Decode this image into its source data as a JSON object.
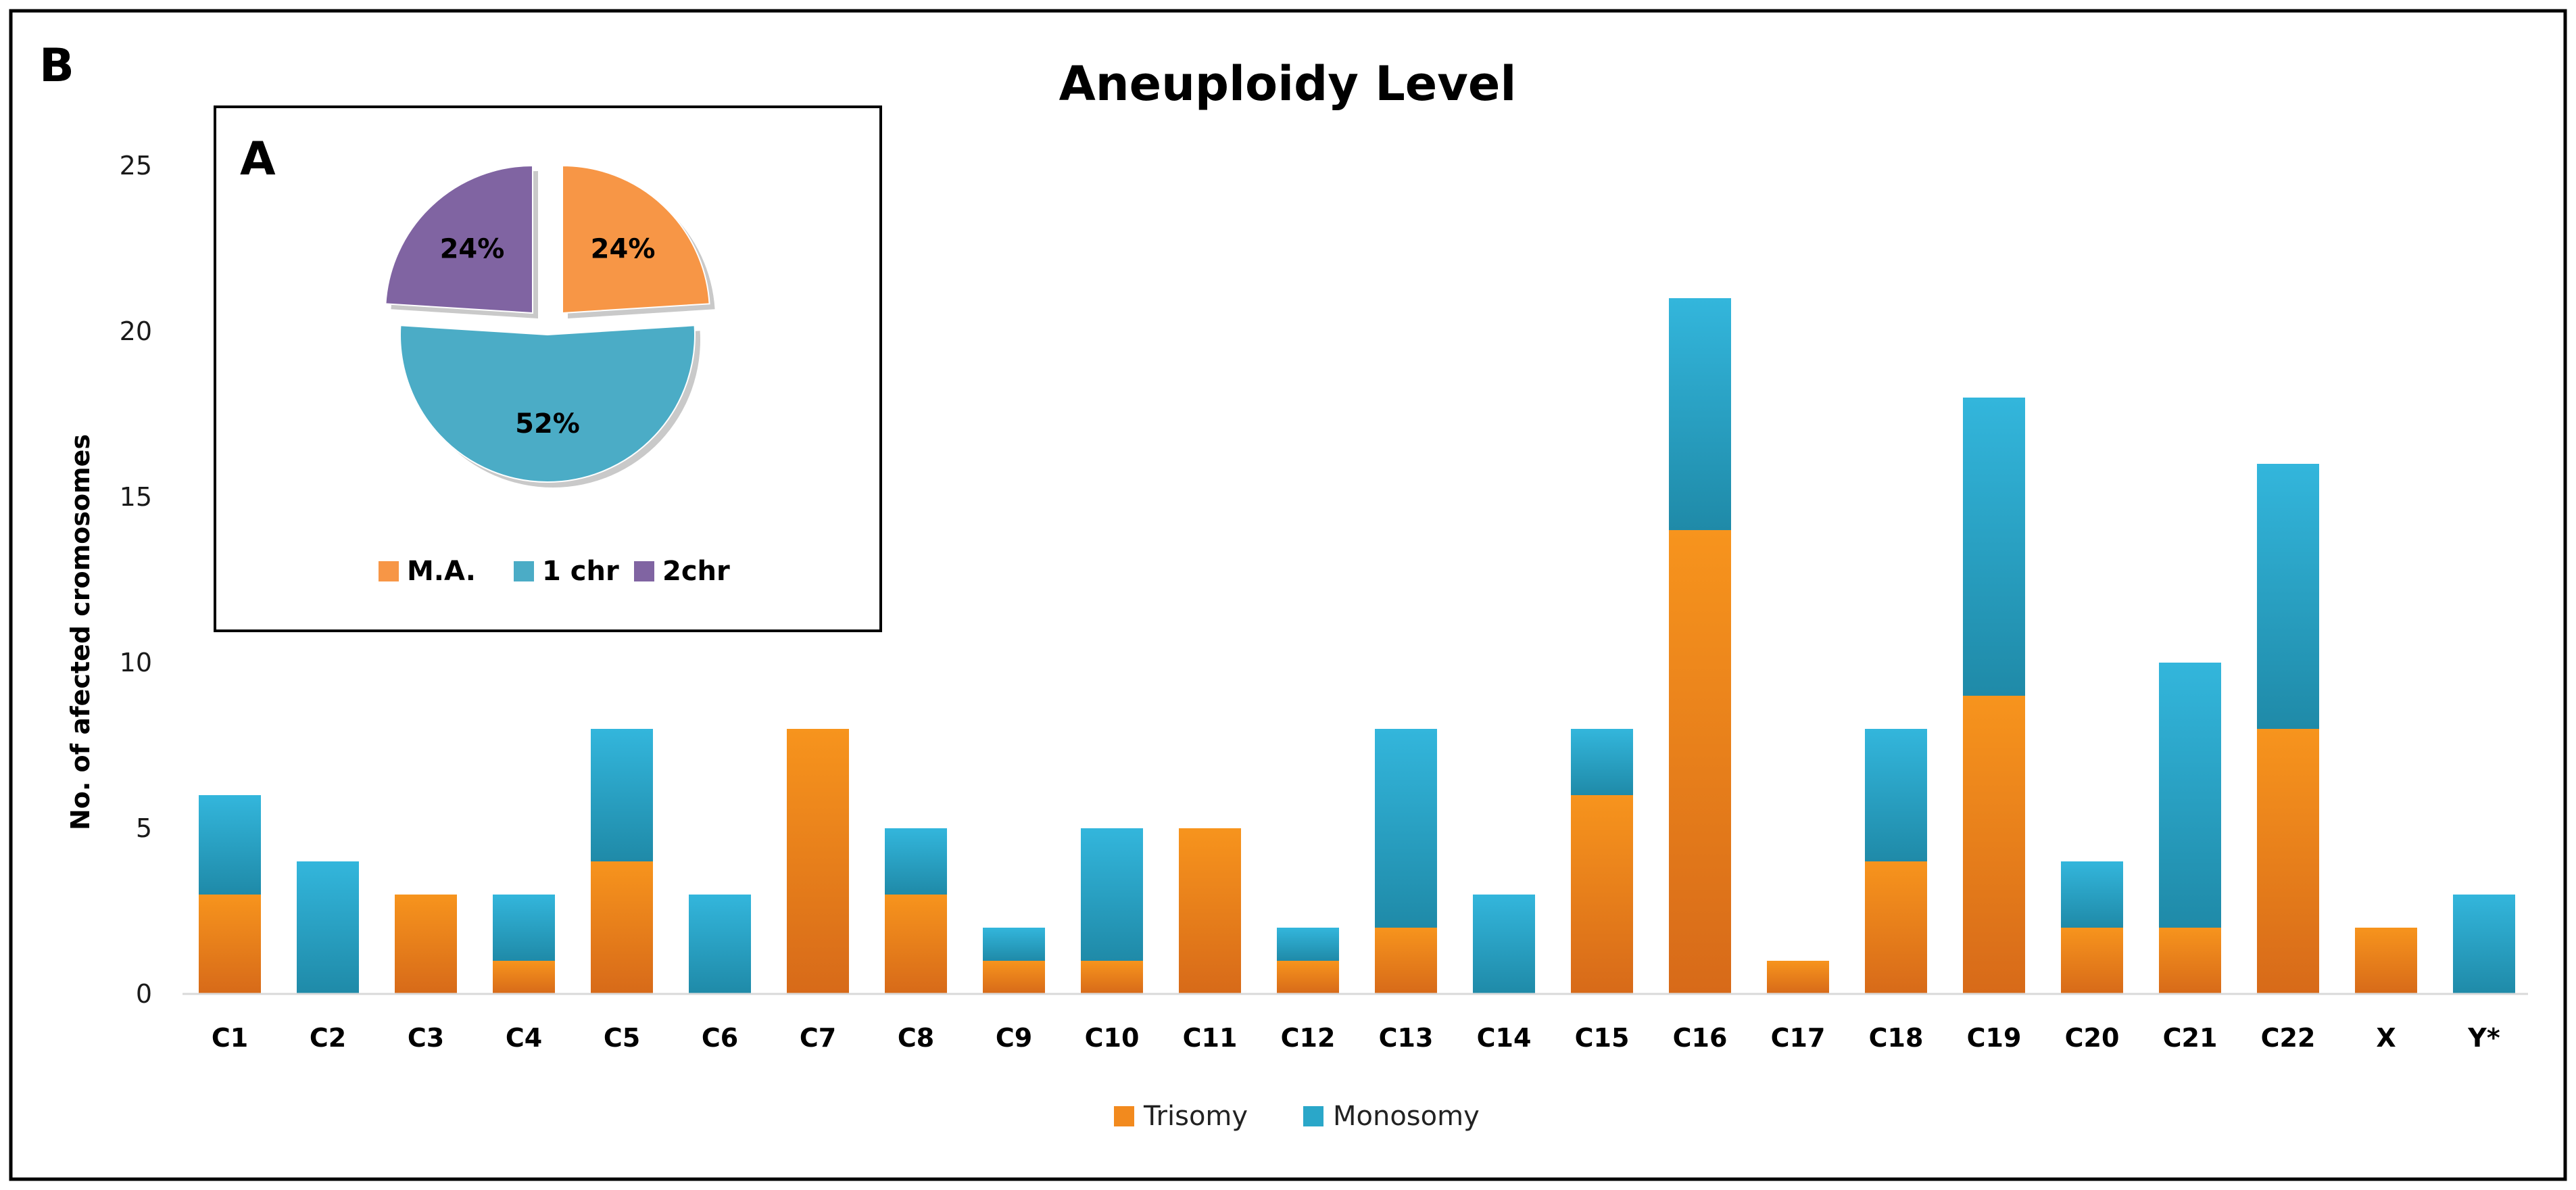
{
  "panel_label_outer": "B",
  "panel_label_inset": "A",
  "chart_data": [
    {
      "type": "bar",
      "stacked": true,
      "title": "Aneuploidy Level",
      "ylabel": "No. of afected cromosomes",
      "xlabel": "",
      "ylim": [
        0,
        25
      ],
      "yticks": [
        0,
        5,
        10,
        15,
        20,
        25
      ],
      "grid": false,
      "legend": "bottom-center",
      "categories": [
        "C1",
        "C2",
        "C3",
        "C4",
        "C5",
        "C6",
        "C7",
        "C8",
        "C9",
        "C10",
        "C11",
        "C12",
        "C13",
        "C14",
        "C15",
        "C16",
        "C17",
        "C18",
        "C19",
        "C20",
        "C21",
        "C22",
        "X",
        "Y*"
      ],
      "series": [
        {
          "name": "Trisomy",
          "color": "#f28a1e",
          "values": [
            3,
            0,
            3,
            1,
            4,
            0,
            8,
            3,
            1,
            1,
            5,
            1,
            2,
            0,
            6,
            14,
            1,
            4,
            9,
            2,
            2,
            8,
            2,
            0
          ]
        },
        {
          "name": "Monosomy",
          "color": "#2aa7c9",
          "values": [
            3,
            4,
            0,
            2,
            4,
            3,
            0,
            2,
            1,
            4,
            0,
            1,
            6,
            3,
            2,
            7,
            0,
            4,
            9,
            2,
            8,
            8,
            0,
            3
          ]
        }
      ]
    },
    {
      "type": "pie",
      "legend": "bottom",
      "slices": [
        {
          "label": "M.A.",
          "value": 24,
          "text": "24%",
          "color": "#f79646"
        },
        {
          "label": "1 chr",
          "value": 52,
          "text": "52%",
          "color": "#4bacc6"
        },
        {
          "label": "2chr",
          "value": 24,
          "text": "24%",
          "color": "#8064a2"
        }
      ]
    }
  ]
}
